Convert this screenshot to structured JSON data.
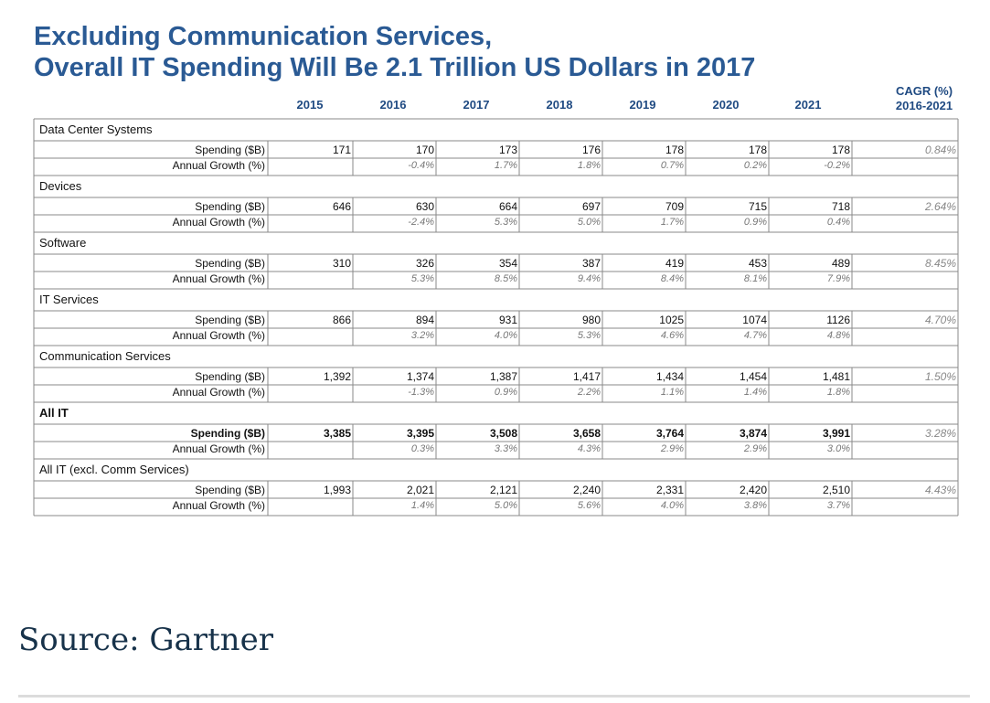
{
  "title_line1": "Excluding Communication Services,",
  "title_line2": "Overall IT Spending Will Be 2.1 Trillion US Dollars in 2017",
  "source": "Source: Gartner",
  "chart_data": {
    "type": "table",
    "years": [
      "2015",
      "2016",
      "2017",
      "2018",
      "2019",
      "2020",
      "2021"
    ],
    "cagr_header": [
      "CAGR (%)",
      "2016-2021"
    ],
    "row_labels": {
      "spending": "Spending ($B)",
      "growth": "Annual Growth (%)"
    },
    "groups": [
      {
        "name": "Data Center Systems",
        "bold": false,
        "spending": [
          "171",
          "170",
          "173",
          "176",
          "178",
          "178",
          "178"
        ],
        "growth": [
          "",
          "-0.4%",
          "1.7%",
          "1.8%",
          "0.7%",
          "0.2%",
          "-0.2%"
        ],
        "cagr": "0.84%"
      },
      {
        "name": "Devices",
        "bold": false,
        "spending": [
          "646",
          "630",
          "664",
          "697",
          "709",
          "715",
          "718"
        ],
        "growth": [
          "",
          "-2.4%",
          "5.3%",
          "5.0%",
          "1.7%",
          "0.9%",
          "0.4%"
        ],
        "cagr": "2.64%"
      },
      {
        "name": "Software",
        "bold": false,
        "spending": [
          "310",
          "326",
          "354",
          "387",
          "419",
          "453",
          "489"
        ],
        "growth": [
          "",
          "5.3%",
          "8.5%",
          "9.4%",
          "8.4%",
          "8.1%",
          "7.9%"
        ],
        "cagr": "8.45%"
      },
      {
        "name": "IT Services",
        "bold": false,
        "spending": [
          "866",
          "894",
          "931",
          "980",
          "1025",
          "1074",
          "1126"
        ],
        "growth": [
          "",
          "3.2%",
          "4.0%",
          "5.3%",
          "4.6%",
          "4.7%",
          "4.8%"
        ],
        "cagr": "4.70%"
      },
      {
        "name": "Communication Services",
        "bold": false,
        "spending": [
          "1,392",
          "1,374",
          "1,387",
          "1,417",
          "1,434",
          "1,454",
          "1,481"
        ],
        "growth": [
          "",
          "-1.3%",
          "0.9%",
          "2.2%",
          "1.1%",
          "1.4%",
          "1.8%"
        ],
        "cagr": "1.50%"
      },
      {
        "name": "All IT",
        "bold": true,
        "spending": [
          "3,385",
          "3,395",
          "3,508",
          "3,658",
          "3,764",
          "3,874",
          "3,991"
        ],
        "growth": [
          "",
          "0.3%",
          "3.3%",
          "4.3%",
          "2.9%",
          "2.9%",
          "3.0%"
        ],
        "cagr": "3.28%"
      },
      {
        "name": "All IT (excl. Comm Services)",
        "bold": false,
        "spending": [
          "1,993",
          "2,021",
          "2,121",
          "2,240",
          "2,331",
          "2,420",
          "2,510"
        ],
        "growth": [
          "",
          "1.4%",
          "5.0%",
          "5.6%",
          "4.0%",
          "3.8%",
          "3.7%"
        ],
        "cagr": "4.43%"
      }
    ]
  },
  "colors": {
    "title": "#2a5a94",
    "header": "#1f4a82",
    "grid": "#8a8a8a",
    "source": "#17324a"
  }
}
